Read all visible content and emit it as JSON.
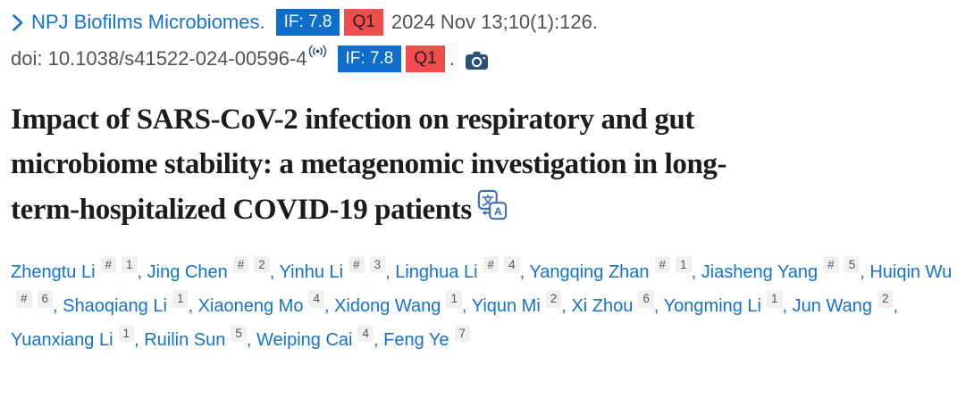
{
  "colors": {
    "link_blue": "#1473d2",
    "if_badge_bg": "#0d6ece",
    "if_badge_text": "#ffffff",
    "q_badge_bg": "#f34c4c",
    "q_badge_text": "#1e1e1e",
    "meta_text_gray": "#4f5357",
    "title_text": "#1a1c1e",
    "sup_badge_bg": "#f1f1f1",
    "sup_badge_text": "#56585a",
    "icon_navy": "#2a5176",
    "translate_icon_blue": "#3a6eb5"
  },
  "journal_line": {
    "journal_name": "NPJ Biofilms Microbiomes.",
    "impact_factor_badge": "IF: 7.8",
    "quartile_badge": "Q1",
    "citation": "2024 Nov 13;10(1):126."
  },
  "doi_line": {
    "doi": "doi: 10.1038/s41522-024-00596-4",
    "impact_factor_badge": "IF: 7.8",
    "quartile_badge": "Q1",
    "period": "."
  },
  "article": {
    "title": "Impact of SARS-CoV-2 infection on respiratory and gut microbiome stability: a metagenomic investigation in long-term-hospitalized COVID-19 patients"
  },
  "authors": [
    {
      "name": "Zhengtu Li",
      "sups": [
        "#",
        "1"
      ]
    },
    {
      "name": "Jing Chen",
      "sups": [
        "#",
        "2"
      ]
    },
    {
      "name": "Yinhu Li",
      "sups": [
        "#",
        "3"
      ]
    },
    {
      "name": "Linghua Li",
      "sups": [
        "#",
        "4"
      ]
    },
    {
      "name": "Yangqing Zhan",
      "sups": [
        "#",
        "1"
      ]
    },
    {
      "name": "Jiasheng Yang",
      "sups": [
        "#",
        "5"
      ]
    },
    {
      "name": "Huiqin Wu",
      "sups": [
        "#",
        "6"
      ]
    },
    {
      "name": "Shaoqiang Li",
      "sups": [
        "1"
      ]
    },
    {
      "name": "Xiaoneng Mo",
      "sups": [
        "4"
      ]
    },
    {
      "name": "Xidong Wang",
      "sups": [
        "1"
      ]
    },
    {
      "name": "Yiqun Mi",
      "sups": [
        "2"
      ]
    },
    {
      "name": "Xi Zhou",
      "sups": [
        "6"
      ]
    },
    {
      "name": "Yongming Li",
      "sups": [
        "1"
      ]
    },
    {
      "name": "Jun Wang",
      "sups": [
        "2"
      ]
    },
    {
      "name": "Yuanxiang Li",
      "sups": [
        "1"
      ]
    },
    {
      "name": "Ruilin Sun",
      "sups": [
        "5"
      ]
    },
    {
      "name": "Weiping Cai",
      "sups": [
        "4"
      ]
    },
    {
      "name": "Feng Ye",
      "sups": [
        "7"
      ]
    }
  ],
  "icons": {
    "chevron": "chevron-right-icon",
    "broadcast": "broadcast-icon",
    "camera": "camera-icon",
    "translate": "translate-icon"
  }
}
